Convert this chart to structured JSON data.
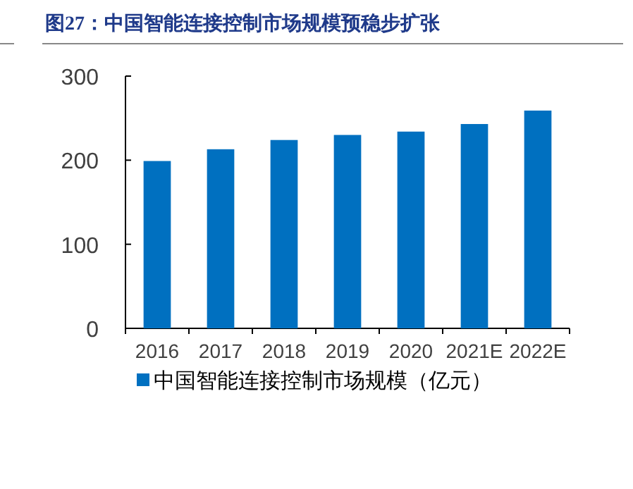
{
  "chart_data": {
    "type": "bar",
    "title": "图27：中国智能连接控制市场规模预稳步扩张",
    "categories": [
      "2016",
      "2017",
      "2018",
      "2019",
      "2020",
      "2021E",
      "2022E"
    ],
    "series": [
      {
        "name": "中国智能连接控制市场规模（亿元）",
        "color": "#0070c0",
        "values": [
          199,
          213,
          224,
          230,
          234,
          243,
          259
        ]
      }
    ],
    "ylim": [
      0,
      300
    ],
    "yticks": [
      0,
      100,
      200,
      300
    ],
    "grid": false,
    "legend": "bottom"
  }
}
